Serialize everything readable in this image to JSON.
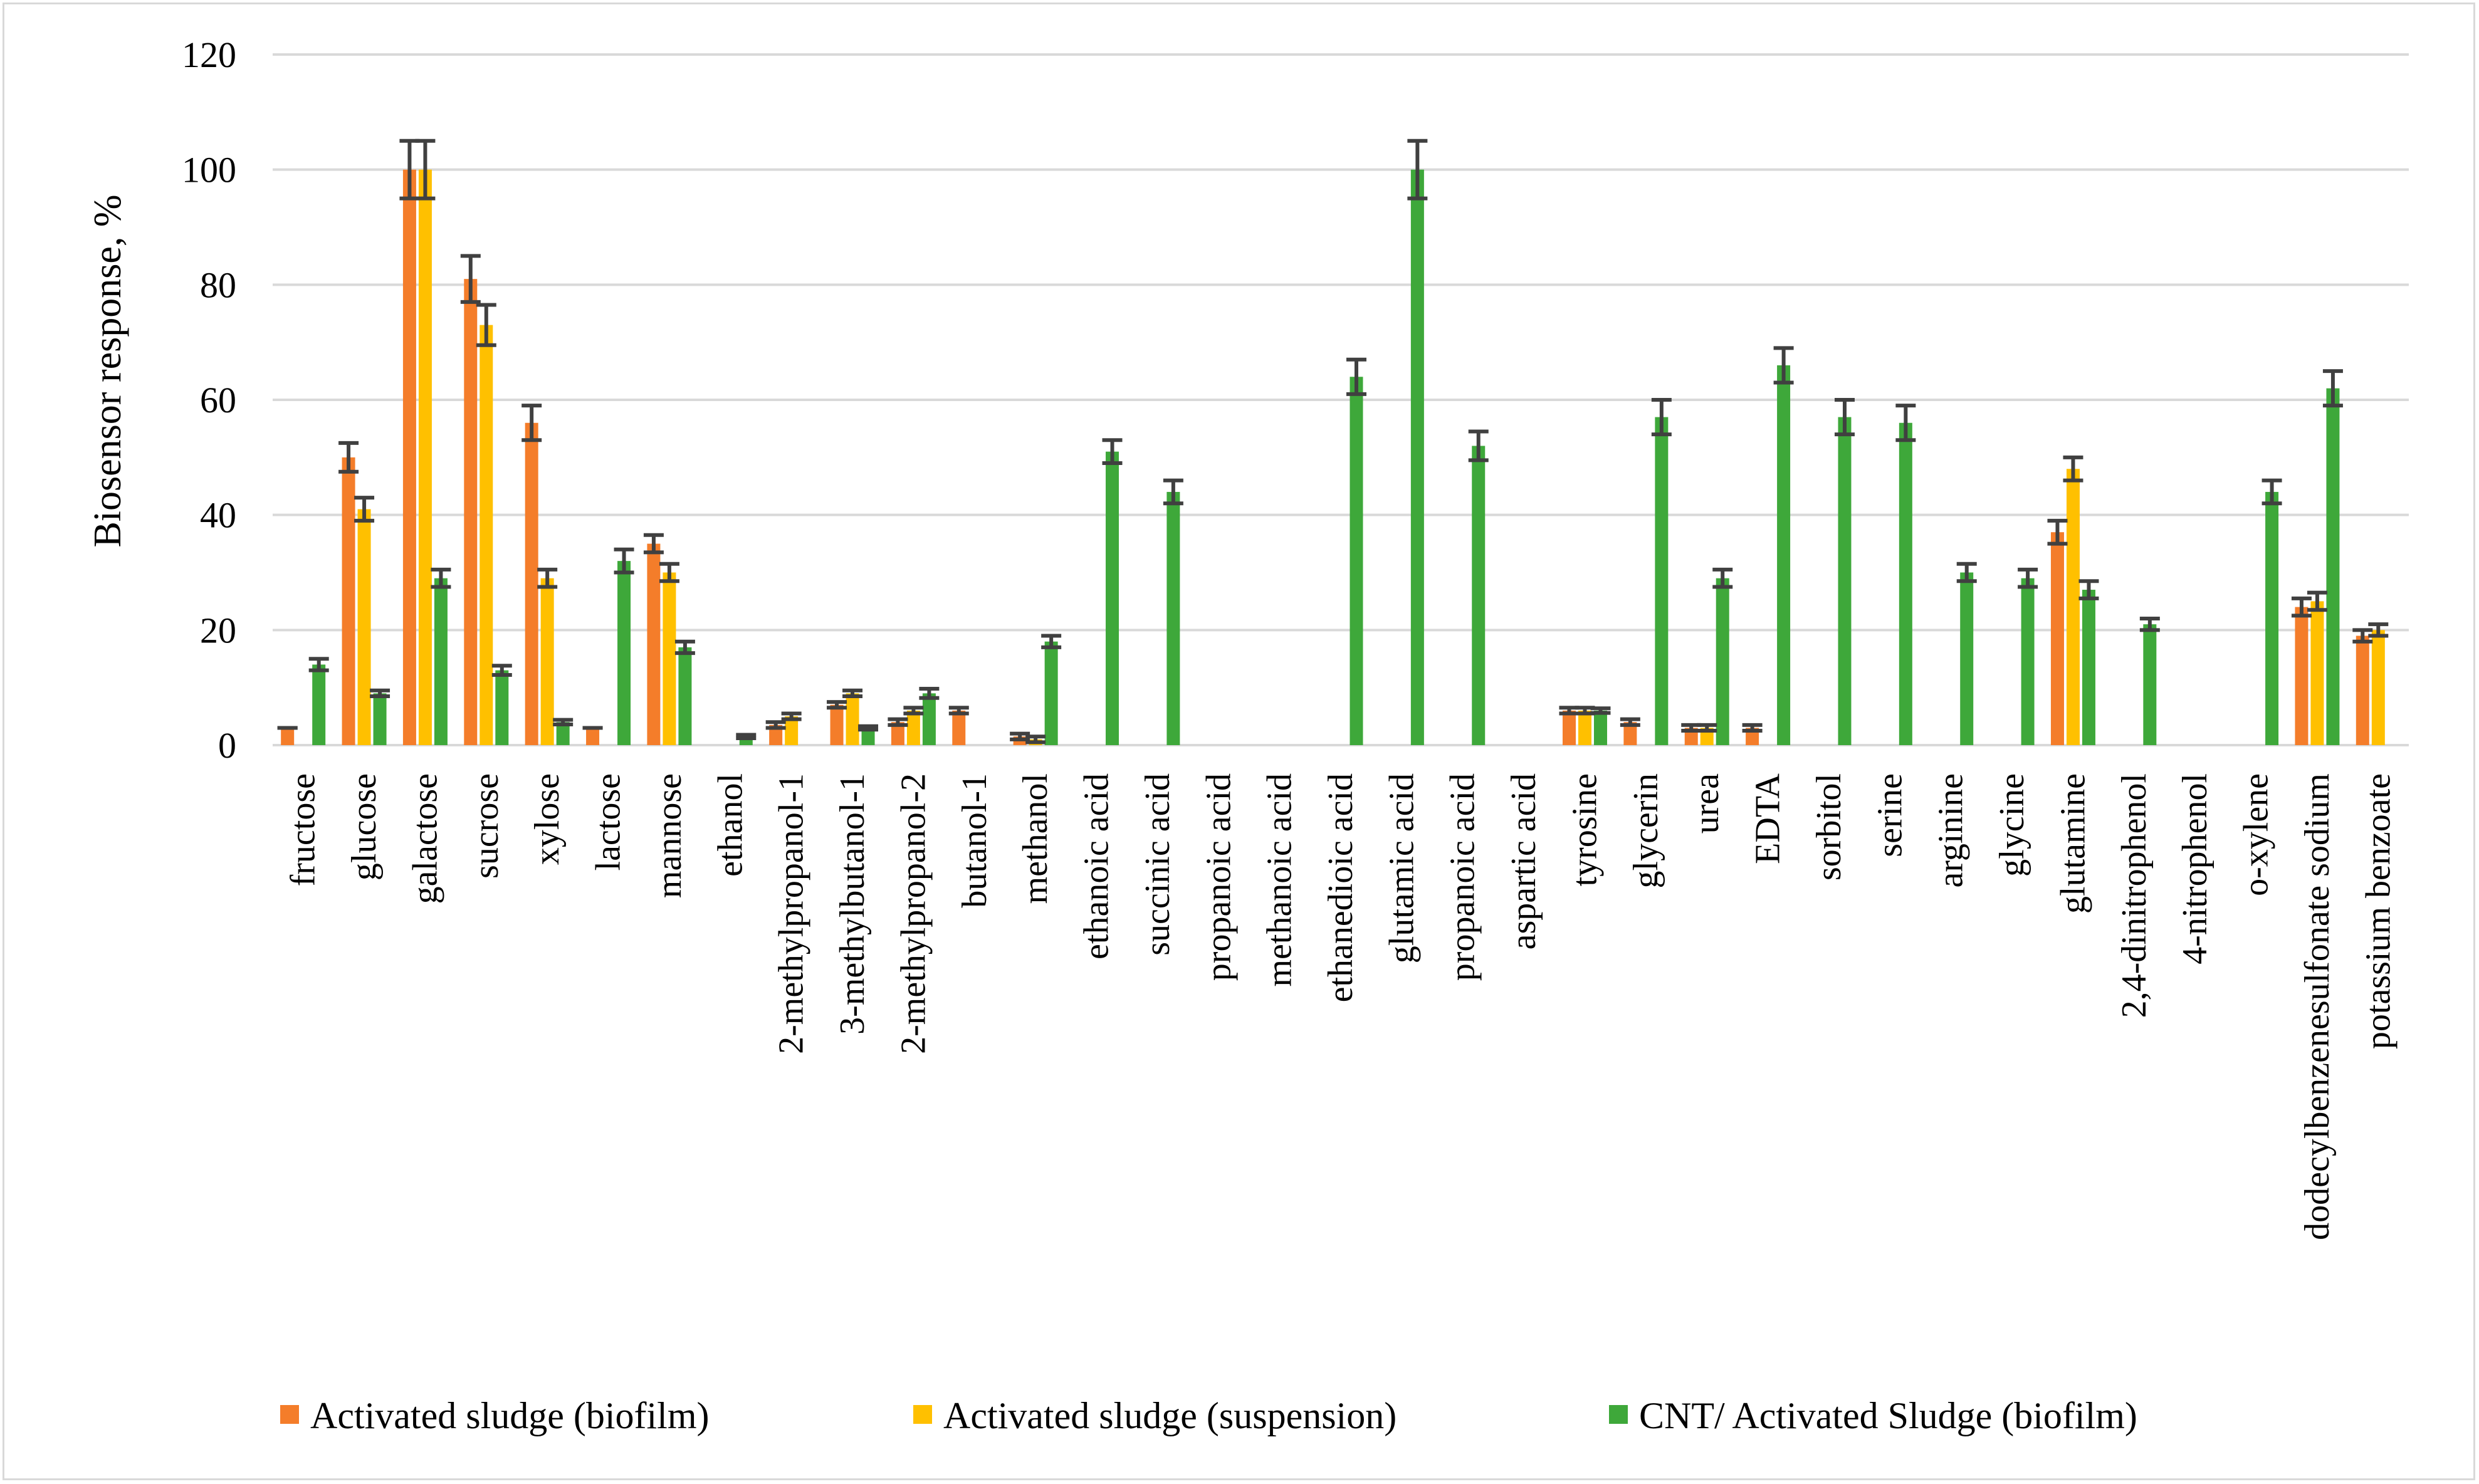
{
  "chart_data": {
    "type": "bar",
    "title": "",
    "xlabel": "",
    "ylabel": "Biosensor response, %",
    "ylim": [
      0,
      120
    ],
    "yticks": [
      0,
      20,
      40,
      60,
      80,
      100,
      120
    ],
    "grid": true,
    "legend_position": "bottom",
    "categories": [
      "fructose",
      "glucose",
      "galactose",
      "sucrose",
      "xylose",
      "lactose",
      "mannose",
      "ethanol",
      "2-methylpropanol-1",
      "3-methylbutanol-1",
      "2-methylpropanol-2",
      "butanol-1",
      "methanol",
      "ethanoic acid",
      "succinic acid",
      "propanoic acid",
      "methanoic acid",
      "ethanedioic acid",
      "glutamic acid",
      "propanoic acid",
      "aspartic acid",
      "tyrosine",
      "glycerin",
      "urea",
      "EDTA",
      "sorbitol",
      "serine",
      "arginine",
      "glycine",
      "glutamine",
      "2,4-dinitrophenol",
      "4-nitrophenol",
      "o-xylene",
      "dodecylbenzenesulfonate sodium",
      "potassium benzoate"
    ],
    "series": [
      {
        "name": "Activated sludge (biofilm)",
        "color": "#f47d2a",
        "values": [
          3,
          50,
          100,
          81,
          56,
          3,
          35,
          null,
          3.5,
          7,
          4,
          6,
          1.5,
          null,
          null,
          null,
          null,
          null,
          null,
          null,
          null,
          6,
          4,
          3,
          3,
          null,
          null,
          null,
          null,
          37,
          null,
          null,
          null,
          24,
          19
        ],
        "errors": [
          0,
          2.5,
          5,
          4,
          3,
          0,
          1.5,
          0,
          0.5,
          0.5,
          0.5,
          0.5,
          0.5,
          0,
          0,
          0,
          0,
          0,
          0,
          0,
          0,
          0.5,
          0.5,
          0.5,
          0.5,
          0,
          0,
          0,
          0,
          2,
          0,
          0,
          0,
          1.5,
          1
        ]
      },
      {
        "name": "Activated sludge (suspension)",
        "color": "#ffc000",
        "values": [
          null,
          41,
          100,
          73,
          29,
          null,
          30,
          null,
          5,
          9,
          6,
          null,
          1,
          null,
          null,
          null,
          null,
          null,
          null,
          null,
          null,
          6,
          null,
          3,
          null,
          null,
          null,
          null,
          null,
          48,
          null,
          null,
          null,
          25,
          20
        ],
        "errors": [
          0,
          2,
          5,
          3.5,
          1.5,
          0,
          1.5,
          0,
          0.5,
          0.5,
          0.5,
          0,
          0.5,
          0,
          0,
          0,
          0,
          0,
          0,
          0,
          0,
          0.5,
          0,
          0.5,
          0,
          0,
          0,
          0,
          0,
          2,
          0,
          0,
          0,
          1.5,
          1
        ]
      },
      {
        "name": "CNT/ Activated Sludge (biofilm)",
        "color": "#3ea83a",
        "values": [
          14,
          9,
          29,
          13,
          4,
          32,
          17,
          1.5,
          null,
          3,
          9,
          null,
          18,
          51,
          44,
          null,
          null,
          64,
          100,
          52,
          null,
          6,
          57,
          29,
          66,
          57,
          56,
          30,
          29,
          27,
          21,
          null,
          44,
          62,
          null
        ],
        "errors": [
          1,
          0.5,
          1.5,
          0.8,
          0.4,
          2,
          1,
          0.3,
          0,
          0.3,
          0.8,
          0,
          1,
          2,
          2,
          0,
          0,
          3,
          5,
          2.5,
          0,
          0.4,
          3,
          1.5,
          3,
          3,
          3,
          1.5,
          1.5,
          1.5,
          1,
          0,
          2,
          3,
          0
        ]
      }
    ]
  }
}
